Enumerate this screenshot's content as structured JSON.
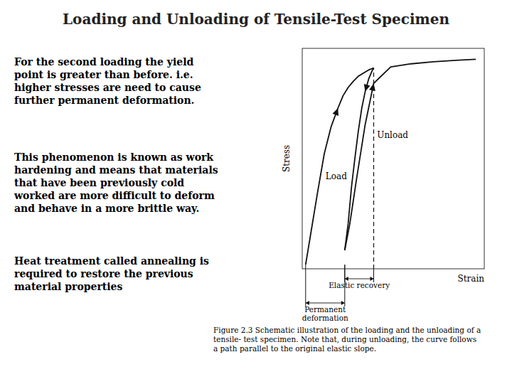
{
  "chart_data": {
    "type": "line",
    "title": "Loading and Unloading of Tensile-Test Specimen",
    "x_label": "Strain",
    "y_label": "Stress",
    "xlim": [
      -0.02,
      1.05
    ],
    "ylim": [
      -0.02,
      1.05
    ],
    "xticks": [],
    "yticks": [],
    "tick_labels": false,
    "grid": false,
    "series": [
      {
        "x": [
          0.0,
          0.03,
          0.07,
          0.11,
          0.15,
          0.19,
          0.22,
          0.25,
          0.28,
          0.31,
          0.34,
          0.37,
          0.4
        ],
        "values": [
          0.0,
          0.15,
          0.35,
          0.54,
          0.67,
          0.76,
          0.82,
          0.86,
          0.89,
          0.915,
          0.93,
          0.945,
          0.955
        ],
        "line_style": "solid",
        "marker": "arrow"
      },
      {
        "x": [
          0.4,
          0.39,
          0.37,
          0.35,
          0.33,
          0.31,
          0.29,
          0.27,
          0.25
        ],
        "values": [
          0.955,
          0.94,
          0.9,
          0.84,
          0.76,
          0.65,
          0.52,
          0.38,
          0.2
        ],
        "line_style": "solid",
        "marker": "arrow"
      },
      {
        "x": [
          0.25,
          0.23
        ],
        "values": [
          0.2,
          0.07
        ],
        "line_style": "solid"
      },
      {
        "x": [
          0.23,
          0.26,
          0.3,
          0.35,
          0.4,
          0.5,
          0.62,
          0.75,
          0.88,
          1.0
        ],
        "values": [
          0.07,
          0.2,
          0.42,
          0.68,
          0.88,
          0.96,
          0.975,
          0.985,
          0.992,
          0.997
        ],
        "line_style": "solid",
        "marker": "arrow"
      },
      {
        "x": [
          0.4,
          0.4
        ],
        "values": [
          -0.02,
          0.955
        ],
        "line_style": "dashed"
      }
    ],
    "annotations": [
      {
        "text": "Load",
        "x": 0.18,
        "y": 0.43
      },
      {
        "text": "Unload",
        "x": 0.42,
        "y": 0.63
      }
    ],
    "dimensions": [
      {
        "label": "Elastic  recovery",
        "from": 0.23,
        "to": 0.4
      },
      {
        "label": "Permanent\ndeformation",
        "from": 0.0,
        "to": 0.23
      }
    ],
    "text_blocks": [
      "For the second loading the yield\npoint is greater than before. i.e.\nhigher stresses are need to cause\nfurther permanent deformation.",
      "This phenomenon is known as work\nhardening and means that materials\nthat have been previously cold\nworked are more difficult to deform\nand behave in a more brittle way.",
      "Heat treatment called annealing is\nrequired to restore the previous\nmaterial properties"
    ],
    "caption": "Figure 2.3  Schematic illustration of the loading and the unloading of a\ntensile- test specimen.  Note that, during unloading, the curve follows\na path parallel to the original elastic slope."
  }
}
